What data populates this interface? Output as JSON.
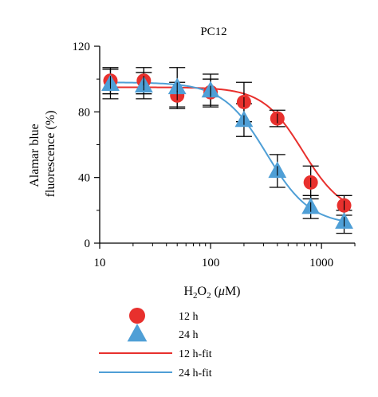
{
  "chart_data": {
    "type": "scatter",
    "title": "PC12",
    "xlabel": "",
    "ylabel_lines": [
      "Alamar blue",
      "fluorescence (%)"
    ],
    "xscale": "log",
    "xlim": [
      10,
      2000
    ],
    "ylim": [
      0,
      120
    ],
    "x_ticks": [
      10,
      100,
      1000
    ],
    "x_tick_labels": [
      "10",
      "100",
      "1000"
    ],
    "y_ticks": [
      0,
      40,
      80,
      120
    ],
    "y_tick_labels": [
      "0",
      "40",
      "80",
      "120"
    ],
    "grid": false,
    "legend_position": "bottom",
    "series": [
      {
        "name": "12 h",
        "marker": "circle",
        "color": "#e8302d",
        "x": [
          12.5,
          25,
          50,
          100,
          200,
          400,
          800,
          1600
        ],
        "y": [
          99,
          99,
          90,
          92,
          86,
          76,
          37,
          23
        ],
        "err": [
          8,
          8,
          8,
          8,
          12,
          5,
          10,
          6
        ]
      },
      {
        "name": "24 h",
        "marker": "triangle",
        "color": "#4f9fd6",
        "x": [
          12.5,
          25,
          50,
          100,
          200,
          400,
          800,
          1600
        ],
        "y": [
          97,
          96,
          95,
          93,
          75,
          44,
          22,
          13
        ],
        "err": [
          9,
          8,
          12,
          10,
          10,
          10,
          7,
          7
        ]
      }
    ],
    "fits": [
      {
        "name": "12 h-fit",
        "color": "#e8302d",
        "top": 95,
        "bottom": 17,
        "ec50": 680,
        "hill": 2.4
      },
      {
        "name": "24 h-fit",
        "color": "#4f9fd6",
        "top": 98,
        "bottom": 11,
        "ec50": 320,
        "hill": 2.2
      }
    ]
  },
  "xlabel_parts": {
    "main": "H",
    "sub1": "2",
    "mid": "O",
    "sub2": "2",
    "open": " (",
    "mu": "μ",
    "unit": "M)"
  }
}
